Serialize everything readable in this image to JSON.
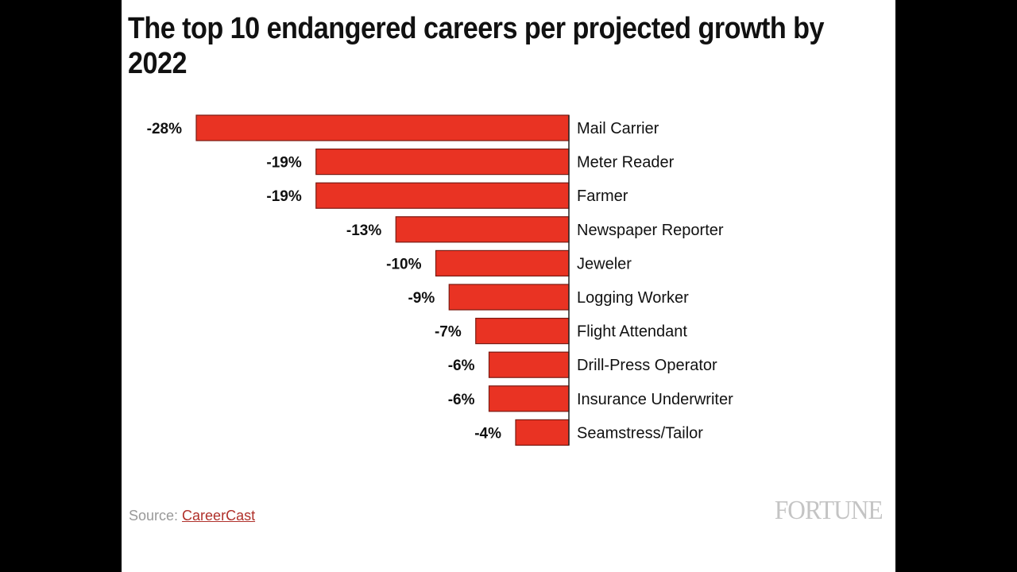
{
  "title": "The top 10 endangered careers per projected growth by 2022",
  "source": {
    "prefix": "Source: ",
    "link_text": "CareerCast"
  },
  "logo": "FORTUNE",
  "colors": {
    "bar": "#e93323",
    "bar_outline": "#7a1a12",
    "source_link": "#b0302a",
    "logo": "#c4c4c4"
  },
  "chart_data": {
    "type": "bar",
    "orientation": "horizontal",
    "title": "The top 10 endangered careers per projected growth by 2022",
    "xlabel": "",
    "ylabel": "",
    "unit": "%",
    "xlim": [
      -28,
      0
    ],
    "grid": false,
    "legend": null,
    "categories": [
      "Mail Carrier",
      "Meter Reader",
      "Farmer",
      "Newspaper Reporter",
      "Jeweler",
      "Logging Worker",
      "Flight Attendant",
      "Drill-Press Operator",
      "Insurance Underwriter",
      "Seamstress/Tailor"
    ],
    "values": [
      -28,
      -19,
      -19,
      -13,
      -10,
      -9,
      -7,
      -6,
      -6,
      -4
    ],
    "value_labels": [
      "-28%",
      "-19%",
      "-19%",
      "-13%",
      "-10%",
      "-9%",
      "-7%",
      "-6%",
      "-6%",
      "-4%"
    ]
  }
}
